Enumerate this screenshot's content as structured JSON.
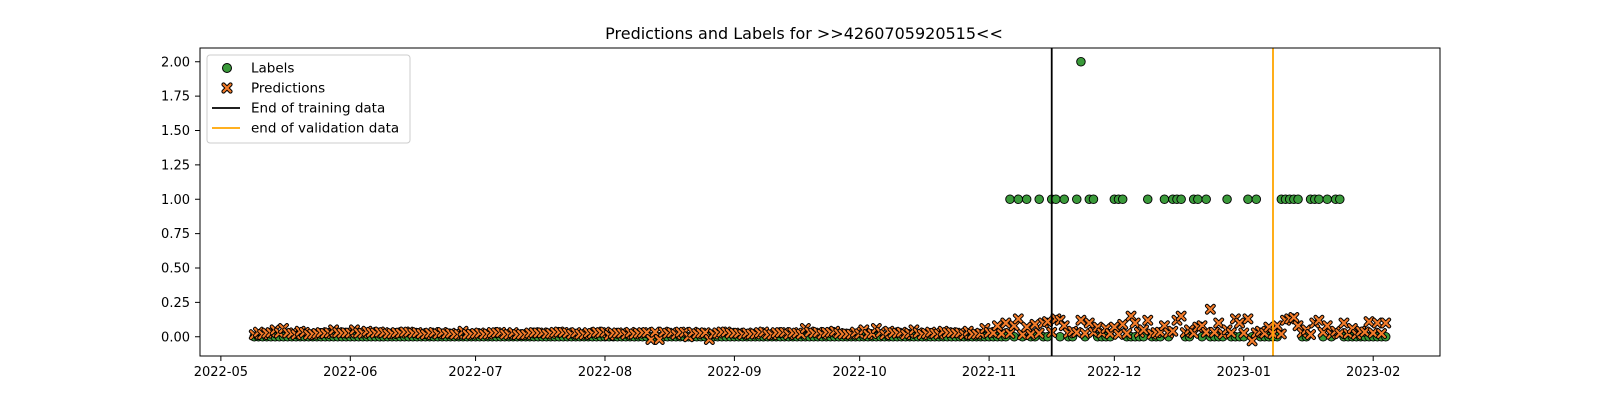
{
  "chart_data": {
    "type": "scatter",
    "title": "Predictions and Labels for >>4260705920515<<",
    "xlabel": "",
    "ylabel": "",
    "xlim": [
      "2022-04-26",
      "2023-02-17"
    ],
    "ylim": [
      -0.14,
      2.1
    ],
    "x_ticks": [
      "2022-05",
      "2022-06",
      "2022-07",
      "2022-08",
      "2022-09",
      "2022-10",
      "2022-11",
      "2022-12",
      "2023-01",
      "2023-02"
    ],
    "x_tick_dates": [
      "2022-05-01",
      "2022-06-01",
      "2022-07-01",
      "2022-08-01",
      "2022-09-01",
      "2022-10-01",
      "2022-11-01",
      "2022-12-01",
      "2023-01-01",
      "2023-02-01"
    ],
    "y_ticks": [
      "0.00",
      "0.25",
      "0.50",
      "0.75",
      "1.00",
      "1.25",
      "1.50",
      "1.75",
      "2.00"
    ],
    "y_tick_values": [
      0,
      0.25,
      0.5,
      0.75,
      1,
      1.25,
      1.5,
      1.75,
      2
    ],
    "grid": false,
    "legend_position": "top-left",
    "colors": {
      "labels": "#3a9a3a",
      "predictions": "#f47c2a",
      "training_line": "#000000",
      "validation_line": "#ffa500"
    },
    "series": [
      {
        "name": "Labels",
        "marker": "circle",
        "ones_dates": [
          "2022-11-06",
          "2022-11-08",
          "2022-11-10",
          "2022-11-13",
          "2022-11-16",
          "2022-11-17",
          "2022-11-19",
          "2022-11-22",
          "2022-11-25",
          "2022-11-26",
          "2022-12-01",
          "2022-12-02",
          "2022-12-03",
          "2022-12-09",
          "2022-12-13",
          "2022-12-15",
          "2022-12-16",
          "2022-12-17",
          "2022-12-20",
          "2022-12-21",
          "2022-12-23",
          "2022-12-28",
          "2023-01-02",
          "2023-01-04",
          "2023-01-10",
          "2023-01-11",
          "2023-01-12",
          "2023-01-13",
          "2023-01-14",
          "2023-01-17",
          "2023-01-18",
          "2023-01-19",
          "2023-01-21",
          "2023-01-23",
          "2023-01-24"
        ],
        "twos_dates": [
          "2022-11-23"
        ],
        "zeros_range": [
          "2022-05-09",
          "2023-02-04"
        ],
        "zeros_gap_note": ""
      },
      {
        "name": "Predictions",
        "marker": "x",
        "baseline_level": 0.02,
        "points": [
          [
            "2022-05-13",
            0.03
          ],
          [
            "2022-05-14",
            0.05
          ],
          [
            "2022-05-16",
            0.06
          ],
          [
            "2022-05-20",
            0.04
          ],
          [
            "2022-05-25",
            0.03
          ],
          [
            "2022-05-28",
            0.05
          ],
          [
            "2022-06-02",
            0.05
          ],
          [
            "2022-06-05",
            0.04
          ],
          [
            "2022-06-12",
            0.03
          ],
          [
            "2022-06-17",
            0.03
          ],
          [
            "2022-06-22",
            0.02
          ],
          [
            "2022-06-28",
            0.04
          ],
          [
            "2022-07-04",
            0.02
          ],
          [
            "2022-07-10",
            0.03
          ],
          [
            "2022-07-18",
            0.02
          ],
          [
            "2022-07-25",
            0.03
          ],
          [
            "2022-08-02",
            0.01
          ],
          [
            "2022-08-08",
            0.02
          ],
          [
            "2022-08-12",
            -0.02
          ],
          [
            "2022-08-14",
            -0.02
          ],
          [
            "2022-08-21",
            0.0
          ],
          [
            "2022-08-26",
            -0.02
          ],
          [
            "2022-09-05",
            0.02
          ],
          [
            "2022-09-12",
            0.03
          ],
          [
            "2022-09-18",
            0.06
          ],
          [
            "2022-09-25",
            0.04
          ],
          [
            "2022-10-02",
            0.05
          ],
          [
            "2022-10-05",
            0.06
          ],
          [
            "2022-10-08",
            0.04
          ],
          [
            "2022-10-14",
            0.05
          ],
          [
            "2022-10-21",
            0.04
          ],
          [
            "2022-10-27",
            0.04
          ],
          [
            "2022-10-31",
            0.06
          ],
          [
            "2022-11-03",
            0.08
          ],
          [
            "2022-11-05",
            0.1
          ],
          [
            "2022-11-07",
            0.08
          ],
          [
            "2022-11-08",
            0.13
          ],
          [
            "2022-11-10",
            0.07
          ],
          [
            "2022-11-12",
            0.09
          ],
          [
            "2022-11-14",
            0.1
          ],
          [
            "2022-11-15",
            0.11
          ],
          [
            "2022-11-17",
            0.13
          ],
          [
            "2022-11-18",
            0.12
          ],
          [
            "2022-11-19",
            0.08
          ],
          [
            "2022-11-21",
            0.04
          ],
          [
            "2022-11-23",
            0.12
          ],
          [
            "2022-11-25",
            0.1
          ],
          [
            "2022-11-27",
            0.07
          ],
          [
            "2022-11-29",
            0.06
          ],
          [
            "2022-12-01",
            0.07
          ],
          [
            "2022-12-03",
            0.09
          ],
          [
            "2022-12-05",
            0.15
          ],
          [
            "2022-12-06",
            0.1
          ],
          [
            "2022-12-08",
            0.05
          ],
          [
            "2022-12-09",
            0.12
          ],
          [
            "2022-12-11",
            0.03
          ],
          [
            "2022-12-13",
            0.08
          ],
          [
            "2022-12-15",
            0.04
          ],
          [
            "2022-12-16",
            0.12
          ],
          [
            "2022-12-17",
            0.15
          ],
          [
            "2022-12-19",
            0.05
          ],
          [
            "2022-12-21",
            0.07
          ],
          [
            "2022-12-22",
            0.08
          ],
          [
            "2022-12-24",
            0.2
          ],
          [
            "2022-12-26",
            0.1
          ],
          [
            "2022-12-28",
            0.05
          ],
          [
            "2022-12-30",
            0.13
          ],
          [
            "2022-12-31",
            0.1
          ],
          [
            "2023-01-02",
            0.13
          ],
          [
            "2023-01-03",
            -0.03
          ],
          [
            "2023-01-05",
            0.04
          ],
          [
            "2023-01-07",
            0.07
          ],
          [
            "2023-01-09",
            0.08
          ],
          [
            "2023-01-11",
            0.12
          ],
          [
            "2023-01-12",
            0.13
          ],
          [
            "2023-01-13",
            0.14
          ],
          [
            "2023-01-14",
            0.08
          ],
          [
            "2023-01-16",
            0.05
          ],
          [
            "2023-01-18",
            0.1
          ],
          [
            "2023-01-19",
            0.12
          ],
          [
            "2023-01-21",
            0.08
          ],
          [
            "2023-01-23",
            0.04
          ],
          [
            "2023-01-25",
            0.1
          ],
          [
            "2023-01-27",
            0.06
          ],
          [
            "2023-01-29",
            0.04
          ],
          [
            "2023-01-31",
            0.11
          ],
          [
            "2023-02-02",
            0.1
          ],
          [
            "2023-02-04",
            0.1
          ]
        ]
      }
    ],
    "vertical_lines": [
      {
        "name": "End of training data",
        "date": "2022-11-16"
      },
      {
        "name": "end of validation data",
        "date": "2023-01-08"
      }
    ]
  }
}
